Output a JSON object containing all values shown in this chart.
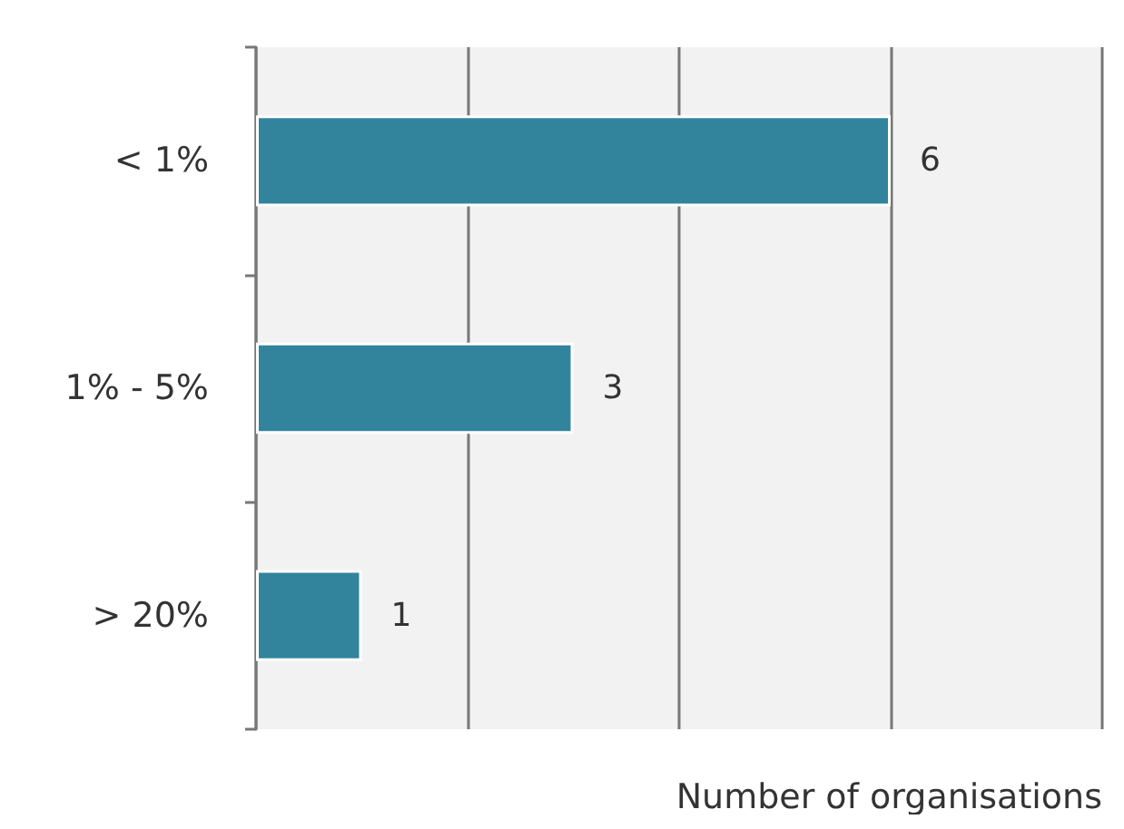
{
  "chart_data": {
    "type": "bar",
    "orientation": "horizontal",
    "xlabel": "Number of organisations",
    "categories": [
      "< 1%",
      "1% - 5%",
      "> 20%"
    ],
    "values": [
      6,
      3,
      1
    ],
    "color": "#31849b",
    "xlim": [
      0,
      8
    ],
    "xticks": [
      {
        "value": 0,
        "label": null
      },
      {
        "value": 2,
        "label": null
      },
      {
        "value": 4,
        "label": null
      },
      {
        "value": 6,
        "label": null
      },
      {
        "value": 8,
        "label": null
      }
    ],
    "tick_labels": "y",
    "grid": "x",
    "data_labels": true
  }
}
